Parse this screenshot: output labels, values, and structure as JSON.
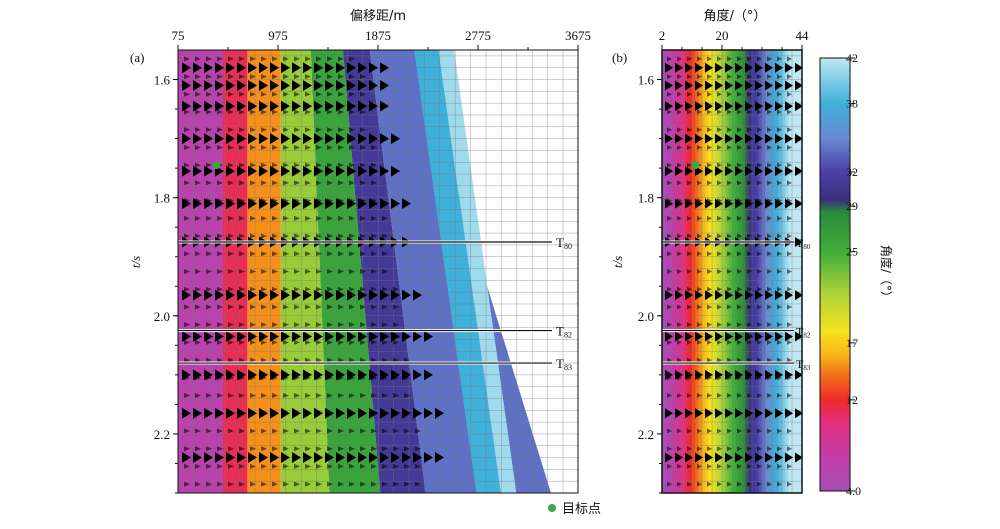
{
  "figure": {
    "panel_a_label": "(a)",
    "panel_b_label": "(b)",
    "target_legend": "目标点",
    "target_color": "#3aa84a"
  },
  "chart_data": [
    {
      "type": "heatmap",
      "panel": "(a)",
      "title": "",
      "xlabel": "偏移距/m",
      "ylabel": "t/s",
      "xlim": [
        75,
        3675
      ],
      "ylim": [
        1.55,
        2.3
      ],
      "x_ticks": [
        "75",
        "975",
        "1875",
        "2775",
        "3675"
      ],
      "y_ticks": [
        "1.6",
        "1.8",
        "2.0",
        "2.2"
      ],
      "colorbar_quantity": "角度",
      "color_bands_deg": [
        {
          "x0": 75,
          "x1": 480,
          "angle": 6
        },
        {
          "x0": 480,
          "x1": 700,
          "angle": 11
        },
        {
          "x0": 700,
          "x1": 1000,
          "angle": 15
        },
        {
          "x0": 1000,
          "x1": 1270,
          "angle": 22
        },
        {
          "x0": 1270,
          "x1": 1560,
          "angle": 26
        },
        {
          "x0": 1560,
          "x1": 1800,
          "angle": 31
        },
        {
          "x0": 1800,
          "x1": 2200,
          "angle": 34
        }
      ],
      "horizons": [
        {
          "name": "T80",
          "label_main": "T",
          "label_sub": "80",
          "t": 1.875
        },
        {
          "name": "T82",
          "label_main": "T",
          "label_sub": "82",
          "t": 2.025
        },
        {
          "name": "T83",
          "label_main": "T",
          "label_sub": "83",
          "t": 2.08
        }
      ],
      "target_point": {
        "x": 420,
        "t": 1.745
      },
      "strong_events_t": [
        1.58,
        1.61,
        1.645,
        1.7,
        1.755,
        1.81,
        1.875,
        1.965,
        2.035,
        2.1,
        2.165,
        2.24
      ]
    },
    {
      "type": "heatmap",
      "panel": "(b)",
      "title": "",
      "xlabel": "角度/（°）",
      "ylabel": "t/s",
      "xlim": [
        2,
        44
      ],
      "ylim": [
        1.55,
        2.3
      ],
      "x_ticks": [
        "2",
        "20",
        "44"
      ],
      "y_ticks": [
        "1.6",
        "1.8",
        "2.0",
        "2.2"
      ],
      "horizons": [
        {
          "name": "T80",
          "label_main": "T",
          "label_sub": "80",
          "t": 1.875
        },
        {
          "name": "T82",
          "label_main": "T",
          "label_sub": "82",
          "t": 2.025
        },
        {
          "name": "T83",
          "label_main": "T",
          "label_sub": "83",
          "t": 2.08
        }
      ],
      "target_point": {
        "x": 12,
        "t": 1.745
      },
      "strong_events_t": [
        1.58,
        1.61,
        1.645,
        1.7,
        1.755,
        1.81,
        1.875,
        1.965,
        2.035,
        2.1,
        2.165,
        2.24
      ]
    }
  ],
  "colorbar": {
    "label": "角度/（°）",
    "min": 4.0,
    "max": 42,
    "tick_labels": [
      "42",
      "38",
      "32",
      "29",
      "25",
      "17",
      "12",
      "4.0"
    ],
    "tick_values": [
      42,
      38,
      32,
      29,
      25,
      17,
      12,
      4
    ],
    "stops": [
      {
        "v": 4,
        "color": "#a64fb6"
      },
      {
        "v": 7,
        "color": "#c23ca8"
      },
      {
        "v": 10,
        "color": "#e3307f"
      },
      {
        "v": 12,
        "color": "#ee2a2a"
      },
      {
        "v": 14,
        "color": "#f36a1b"
      },
      {
        "v": 16,
        "color": "#f7b718"
      },
      {
        "v": 18,
        "color": "#f5e21e"
      },
      {
        "v": 21,
        "color": "#b6d637"
      },
      {
        "v": 25,
        "color": "#3fae3a"
      },
      {
        "v": 28.5,
        "color": "#2a8a3c"
      },
      {
        "v": 29.5,
        "color": "#3b2f7a"
      },
      {
        "v": 32,
        "color": "#4a40a8"
      },
      {
        "v": 35,
        "color": "#6a8ad2"
      },
      {
        "v": 38,
        "color": "#3fb0da"
      },
      {
        "v": 42,
        "color": "#bfe8f3"
      }
    ]
  }
}
